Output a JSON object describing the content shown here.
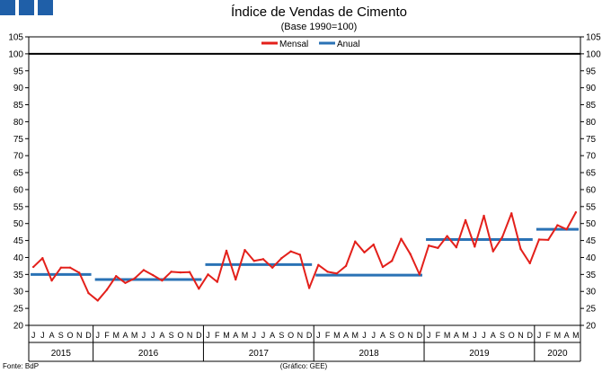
{
  "logo_colors": [
    "#1f5fa8",
    "#1f5fa8",
    "#1f5fa8"
  ],
  "chart_data": {
    "type": "line",
    "title": "Índice de Vendas de Cimento",
    "subtitle": "(Base 1990=100)",
    "ylim": [
      20,
      105
    ],
    "y_ticks": [
      20,
      25,
      30,
      35,
      40,
      45,
      50,
      55,
      60,
      65,
      70,
      75,
      80,
      85,
      90,
      95,
      100,
      105
    ],
    "grid": false,
    "legend_position": "top-center",
    "x_month_labels": [
      "J",
      "J",
      "A",
      "S",
      "O",
      "N",
      "D",
      "J",
      "F",
      "M",
      "A",
      "M",
      "J",
      "J",
      "A",
      "S",
      "O",
      "N",
      "D",
      "J",
      "F",
      "M",
      "A",
      "M",
      "J",
      "J",
      "A",
      "S",
      "O",
      "N",
      "D",
      "J",
      "F",
      "M",
      "A",
      "M",
      "J",
      "J",
      "A",
      "S",
      "O",
      "N",
      "D",
      "J",
      "F",
      "M",
      "A",
      "M",
      "J",
      "J",
      "A",
      "S",
      "O",
      "N",
      "D",
      "J",
      "F",
      "M",
      "A",
      "M"
    ],
    "year_groups": [
      {
        "label": "2015",
        "months": 7
      },
      {
        "label": "2016",
        "months": 12
      },
      {
        "label": "2017",
        "months": 12
      },
      {
        "label": "2018",
        "months": 12
      },
      {
        "label": "2019",
        "months": 12
      },
      {
        "label": "2020",
        "months": 5
      }
    ],
    "reference_line": {
      "value": 100,
      "color": "#000000"
    },
    "series": [
      {
        "name": "Mensal",
        "color": "#e3201b",
        "values": [
          37.2,
          39.8,
          33.2,
          37.0,
          37.0,
          35.5,
          29.5,
          27.3,
          30.5,
          34.5,
          32.5,
          33.8,
          36.3,
          34.8,
          33.2,
          35.8,
          35.6,
          35.7,
          30.8,
          35.0,
          32.8,
          42.0,
          33.5,
          42.2,
          39.0,
          39.5,
          37.0,
          39.8,
          41.8,
          40.8,
          31.0,
          37.8,
          35.8,
          35.3,
          37.5,
          44.7,
          41.5,
          43.8,
          37.2,
          39.0,
          45.5,
          41.0,
          35.0,
          43.5,
          42.8,
          46.3,
          43.0,
          51.0,
          43.2,
          52.3,
          41.8,
          46.0,
          53.0,
          42.5,
          38.3,
          45.3,
          45.2,
          49.5,
          48.3,
          53.3
        ]
      },
      {
        "name": "Anual",
        "color": "#2a72b5",
        "segments": [
          {
            "year": "2015",
            "value": 35.0
          },
          {
            "year": "2016",
            "value": 33.5
          },
          {
            "year": "2017",
            "value": 37.9
          },
          {
            "year": "2018",
            "value": 34.8
          },
          {
            "year": "2019",
            "value": 45.3
          },
          {
            "year": "2020",
            "value": 48.3
          }
        ]
      }
    ],
    "footer_left": "Fonte: BdP",
    "footer_center": "(Gráfico: GEE)"
  }
}
